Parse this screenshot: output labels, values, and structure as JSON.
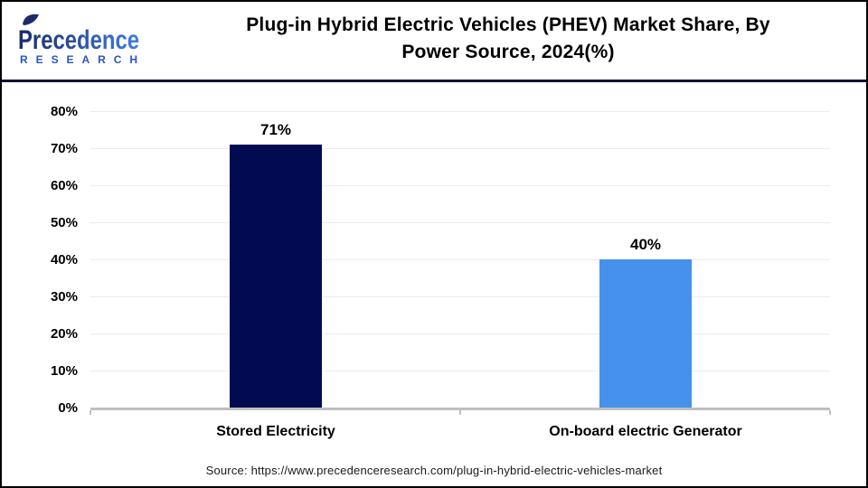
{
  "header": {
    "logo": {
      "name": "Precedence",
      "subtitle": "RESEARCH"
    },
    "title_lines": [
      "Plug-in Hybrid Electric Vehicles (PHEV) Market Share, By",
      "Power Source, 2024(%)"
    ]
  },
  "chart_data": {
    "type": "bar",
    "title": "Plug-in Hybrid Electric Vehicles (PHEV) Market Share, By Power Source, 2024(%)",
    "categories": [
      "Stored Electricity",
      "On-board electric Generator"
    ],
    "values": [
      71,
      40
    ],
    "value_labels": [
      "71%",
      "40%"
    ],
    "bar_colors": [
      "#020b52",
      "#4591ec"
    ],
    "ylim": [
      0,
      80
    ],
    "ytick_labels": [
      "0%",
      "10%",
      "20%",
      "30%",
      "40%",
      "50%",
      "60%",
      "70%",
      "80%"
    ],
    "xlabel": "",
    "ylabel": "",
    "grid": "horizontal",
    "legend": "none"
  },
  "footer": {
    "source": "Source: https://www.precedenceresearch.com/plug-in-hybrid-electric-vehicles-market"
  },
  "colors": {
    "bar_stored_electricity": "#020b52",
    "bar_onboard_generator": "#4591ec",
    "axis": "#bfbfbf",
    "gridline": "#ececec",
    "header_divider": "#0e1237",
    "frame_border": "#000000",
    "logo_gradient_start": "#1b2a6b",
    "logo_gradient_end": "#3f7ede",
    "logo_research_blue": "#2b56bb"
  }
}
